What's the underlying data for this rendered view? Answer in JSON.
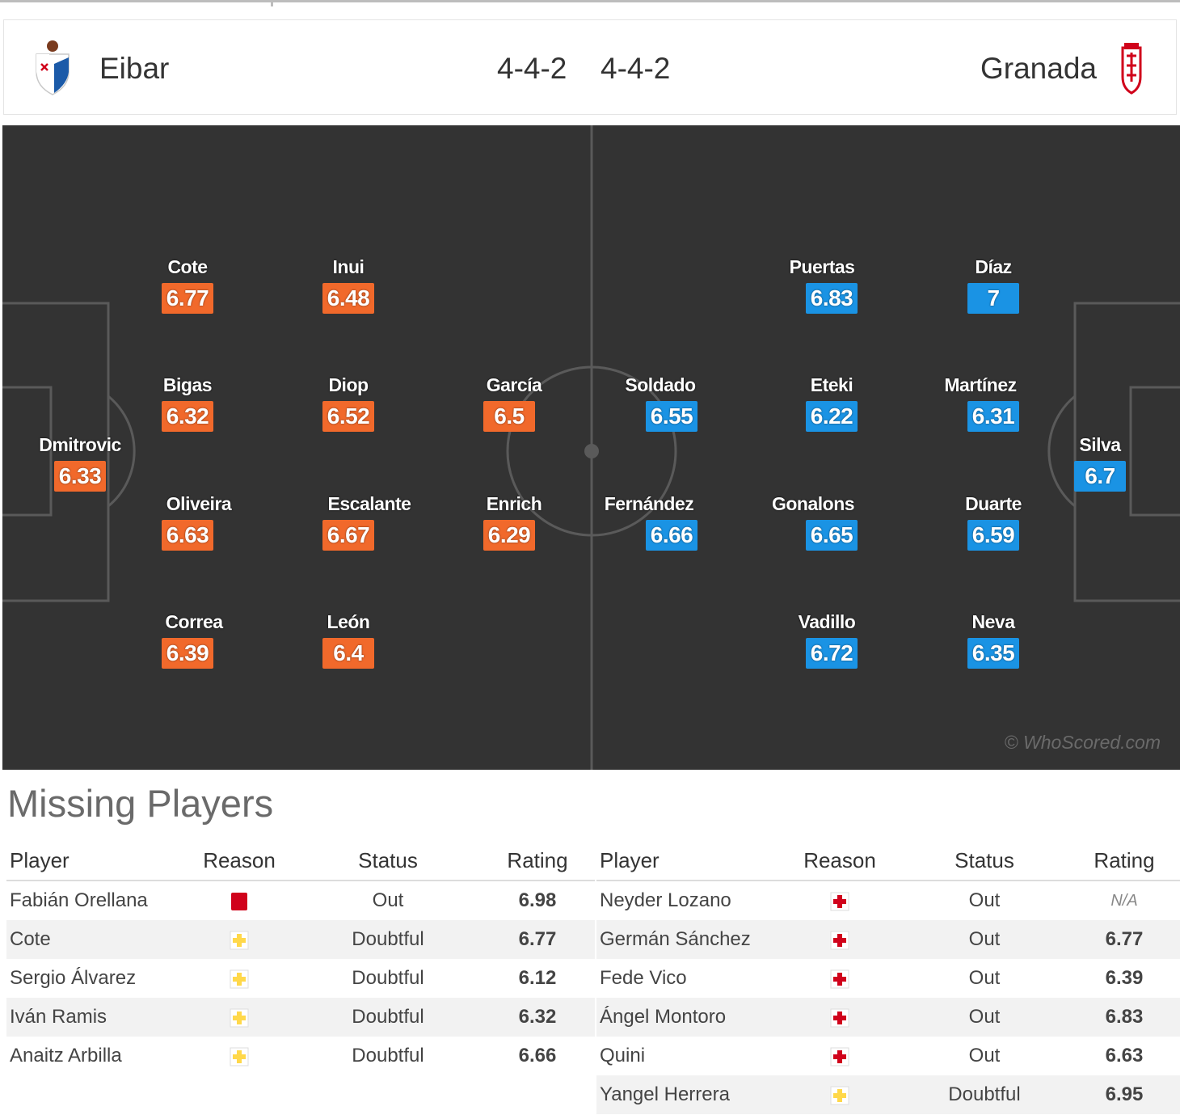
{
  "header": {
    "home_team": "Eibar",
    "away_team": "Granada",
    "home_formation": "4-4-2",
    "away_formation": "4-4-2"
  },
  "pitch": {
    "watermark": "© WhoScored.com",
    "home_players": [
      {
        "name": "Dmitrovic",
        "rating": "6.33"
      },
      {
        "name": "Cote",
        "rating": "6.77"
      },
      {
        "name": "Bigas",
        "rating": "6.32"
      },
      {
        "name": "Oliveira",
        "rating": "6.63"
      },
      {
        "name": "Correa",
        "rating": "6.39"
      },
      {
        "name": "Inui",
        "rating": "6.48"
      },
      {
        "name": "Diop",
        "rating": "6.52"
      },
      {
        "name": "Escalante",
        "rating": "6.67"
      },
      {
        "name": "León",
        "rating": "6.4"
      },
      {
        "name": "García",
        "rating": "6.5"
      },
      {
        "name": "Enrich",
        "rating": "6.29"
      }
    ],
    "away_players": [
      {
        "name": "Soldado",
        "rating": "6.55"
      },
      {
        "name": "Fernández",
        "rating": "6.66"
      },
      {
        "name": "Puertas",
        "rating": "6.83"
      },
      {
        "name": "Eteki",
        "rating": "6.22"
      },
      {
        "name": "Gonalons",
        "rating": "6.65"
      },
      {
        "name": "Vadillo",
        "rating": "6.72"
      },
      {
        "name": "Díaz",
        "rating": "7"
      },
      {
        "name": "Martínez",
        "rating": "6.31"
      },
      {
        "name": "Duarte",
        "rating": "6.59"
      },
      {
        "name": "Neva",
        "rating": "6.35"
      },
      {
        "name": "Silva",
        "rating": "6.7"
      }
    ]
  },
  "missing": {
    "title": "Missing Players",
    "columns": {
      "player": "Player",
      "reason": "Reason",
      "status": "Status",
      "rating": "Rating"
    },
    "home": [
      {
        "player": "Fabián Orellana",
        "reason_icon": "red-card-icon",
        "status": "Out",
        "rating": "6.98"
      },
      {
        "player": "Cote",
        "reason_icon": "doubtful-cross-icon",
        "status": "Doubtful",
        "rating": "6.77"
      },
      {
        "player": "Sergio Álvarez",
        "reason_icon": "doubtful-cross-icon",
        "status": "Doubtful",
        "rating": "6.12"
      },
      {
        "player": "Iván Ramis",
        "reason_icon": "doubtful-cross-icon",
        "status": "Doubtful",
        "rating": "6.32"
      },
      {
        "player": "Anaitz Arbilla",
        "reason_icon": "doubtful-cross-icon",
        "status": "Doubtful",
        "rating": "6.66"
      }
    ],
    "away": [
      {
        "player": "Neyder Lozano",
        "reason_icon": "injury-cross-icon",
        "status": "Out",
        "rating": "N/A"
      },
      {
        "player": "Germán Sánchez",
        "reason_icon": "injury-cross-icon",
        "status": "Out",
        "rating": "6.77"
      },
      {
        "player": "Fede Vico",
        "reason_icon": "injury-cross-icon",
        "status": "Out",
        "rating": "6.39"
      },
      {
        "player": "Ángel Montoro",
        "reason_icon": "injury-cross-icon",
        "status": "Out",
        "rating": "6.83"
      },
      {
        "player": "Quini",
        "reason_icon": "injury-cross-icon",
        "status": "Out",
        "rating": "6.63"
      },
      {
        "player": "Yangel Herrera",
        "reason_icon": "doubtful-cross-icon",
        "status": "Doubtful",
        "rating": "6.95"
      }
    ]
  },
  "colors": {
    "home_rating": "#f1692b",
    "away_rating": "#1a93e4",
    "pitch": "#333333"
  }
}
